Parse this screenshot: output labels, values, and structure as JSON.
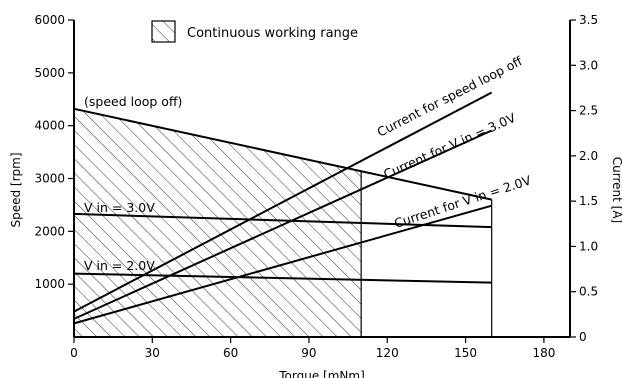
{
  "chart_data": {
    "type": "line",
    "xlabel": "Torque [mNm]",
    "ylabel_left": "Speed [rpm]",
    "ylabel_right": "Current [A]",
    "xlim": [
      0,
      190
    ],
    "xticks": [
      0,
      30,
      60,
      90,
      120,
      150,
      180
    ],
    "ylim_left": [
      0,
      6000
    ],
    "yticks_left": [
      1000,
      2000,
      3000,
      4000,
      5000,
      6000
    ],
    "ylim_right": [
      0,
      3.5
    ],
    "yticks_right": [
      0,
      0.5,
      1.0,
      1.5,
      2.0,
      2.5,
      3.0,
      3.5
    ],
    "grid": false,
    "legend": {
      "placement": "top-left",
      "label": "Continuous working range"
    },
    "shaded_region": {
      "pattern": "hatched",
      "x_max": 110,
      "upper_edge": "speed loop off"
    },
    "series": [
      {
        "axis": "left",
        "label": "(speed loop off)",
        "x": [
          0,
          160
        ],
        "y": [
          4320,
          2600
        ]
      },
      {
        "axis": "left",
        "label": "V in = 3.0V",
        "x": [
          0,
          160
        ],
        "y": [
          2330,
          2080
        ]
      },
      {
        "axis": "left",
        "label": "V in = 2.0V",
        "x": [
          0,
          160
        ],
        "y": [
          1200,
          1030
        ]
      },
      {
        "axis": "right",
        "label": "Current for speed loop off",
        "x": [
          0,
          160
        ],
        "y": [
          0.28,
          2.7
        ]
      },
      {
        "axis": "right",
        "label": "Current for V in = 3.0V",
        "x": [
          0,
          160
        ],
        "y": [
          0.2,
          2.28
        ]
      },
      {
        "axis": "right",
        "label": "Current for V in = 2.0V",
        "x": [
          0,
          160
        ],
        "y": [
          0.15,
          1.45
        ]
      }
    ],
    "verticals": [
      110,
      160
    ]
  }
}
